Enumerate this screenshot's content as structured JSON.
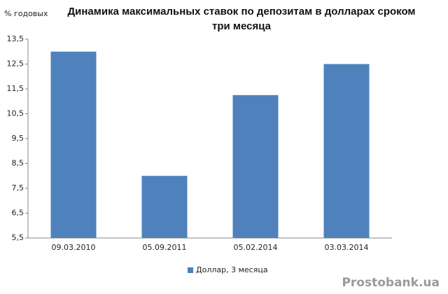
{
  "chart_data": {
    "type": "bar",
    "title": "Динамика максимальных ставок по депозитам  в долларах  сроком три месяца",
    "y_label": "% годовых",
    "categories": [
      "09.03.2010",
      "05.09.2011",
      "05.02.2014",
      "03.03.2014"
    ],
    "series": [
      {
        "name": "Доллар, 3 месяца",
        "color": "#4f81bd",
        "values": [
          13.0,
          8.0,
          11.25,
          12.5
        ]
      }
    ],
    "ylim": [
      5.5,
      13.5
    ],
    "yticks": [
      {
        "value": 5.5,
        "label": "5,5"
      },
      {
        "value": 6.5,
        "label": "6,5"
      },
      {
        "value": 7.5,
        "label": "7,5"
      },
      {
        "value": 8.5,
        "label": "8,5"
      },
      {
        "value": 9.5,
        "label": "9,5"
      },
      {
        "value": 10.5,
        "label": "10,5"
      },
      {
        "value": 11.5,
        "label": "11,5"
      },
      {
        "value": 12.5,
        "label": "12,5"
      },
      {
        "value": 13.5,
        "label": "13,5"
      }
    ],
    "grid": false,
    "legend": "bottom",
    "watermark": "Prostobank.ua"
  }
}
